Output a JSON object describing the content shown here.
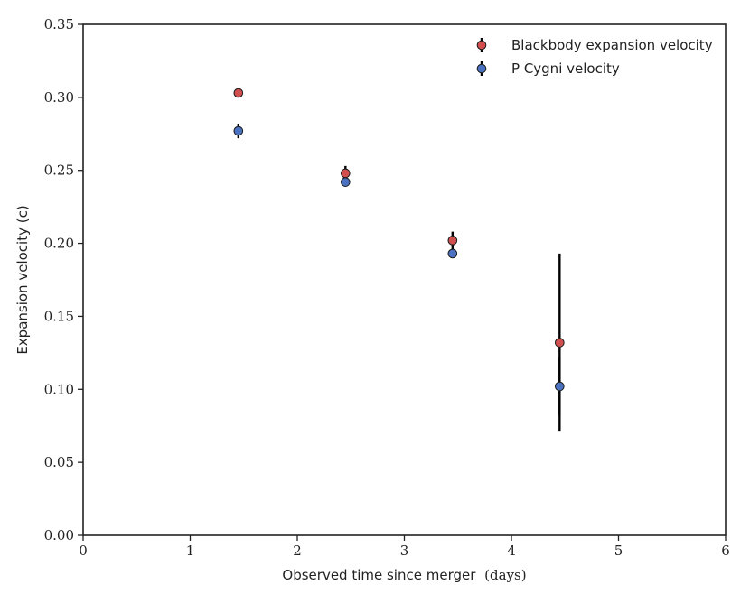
{
  "chart_data": {
    "type": "scatter",
    "xlabel": "Observed time since merger",
    "xlabel_unit": "(days)",
    "ylabel": "Expansion velocity (c)",
    "xlim": [
      0,
      6
    ],
    "ylim": [
      0,
      0.35
    ],
    "x_ticks": [
      "0",
      "1",
      "2",
      "3",
      "4",
      "5",
      "6"
    ],
    "y_ticks": [
      "0.00",
      "0.05",
      "0.10",
      "0.15",
      "0.20",
      "0.25",
      "0.30",
      "0.35"
    ],
    "grid": false,
    "legend_position": "top-right",
    "series": [
      {
        "name": "Blackbody expansion velocity",
        "color": "#d05050",
        "points": [
          {
            "x": 1.45,
            "y": 0.303,
            "yerr": 0.001
          },
          {
            "x": 2.45,
            "y": 0.248,
            "yerr": 0.005
          },
          {
            "x": 3.45,
            "y": 0.202,
            "yerr": 0.006
          },
          {
            "x": 4.45,
            "y": 0.132,
            "yerr": 0.061
          }
        ]
      },
      {
        "name": "P Cygni velocity",
        "color": "#4a72c0",
        "points": [
          {
            "x": 1.45,
            "y": 0.277,
            "yerr": 0.005
          },
          {
            "x": 2.45,
            "y": 0.242,
            "yerr": 0.002
          },
          {
            "x": 3.45,
            "y": 0.193,
            "yerr": 0.002
          },
          {
            "x": 4.45,
            "y": 0.102,
            "yerr": 0.02
          }
        ]
      }
    ]
  }
}
